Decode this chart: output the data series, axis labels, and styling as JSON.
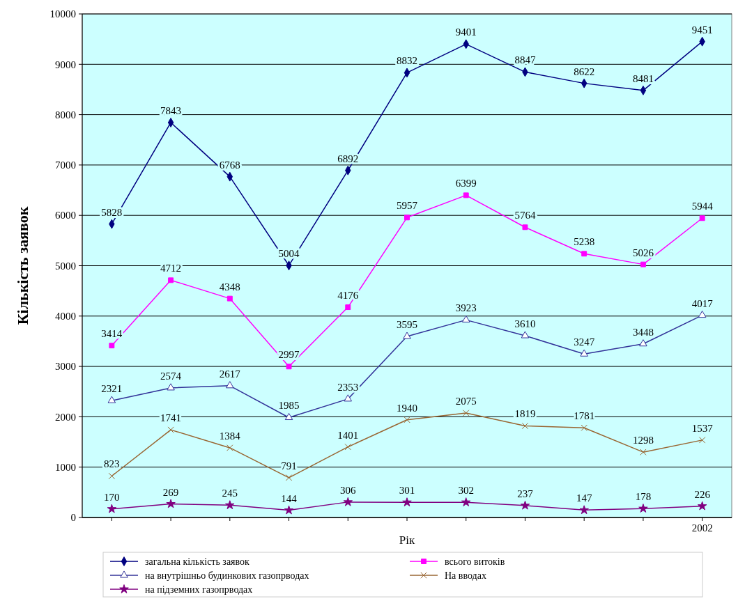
{
  "chart_data": {
    "type": "line",
    "xlabel": "Рік",
    "ylabel": "Кількість заявок",
    "categories": [
      null,
      null,
      null,
      null,
      null,
      null,
      null,
      null,
      null,
      null,
      "2002"
    ],
    "ylim": [
      0,
      10000
    ],
    "yticks": [
      0,
      1000,
      2000,
      3000,
      4000,
      5000,
      6000,
      7000,
      8000,
      9000,
      10000
    ],
    "grid": "y",
    "legend": "bottom",
    "data_labels": true,
    "series": [
      {
        "name": "загальна кількість заявок",
        "color": "#000080",
        "marker": "diamond",
        "values": [
          5828,
          7843,
          6768,
          5004,
          6892,
          8832,
          9401,
          8847,
          8622,
          8481,
          9451
        ]
      },
      {
        "name": "всього витоків",
        "color": "#ff00ff",
        "marker": "square",
        "values": [
          3414,
          4712,
          4348,
          2997,
          4176,
          5957,
          6399,
          5764,
          5238,
          5026,
          5944
        ]
      },
      {
        "name": "на внутрішньо будинкових газопрводах",
        "color": "#333399",
        "marker": "triangle",
        "values": [
          2321,
          2574,
          2617,
          1985,
          2353,
          3595,
          3923,
          3610,
          3247,
          3448,
          4017
        ]
      },
      {
        "name": "На вводах",
        "color": "#996633",
        "marker": "cross",
        "values": [
          823,
          1741,
          1384,
          791,
          1401,
          1940,
          2075,
          1819,
          1781,
          1298,
          1537
        ]
      },
      {
        "name": "на підземних газопрводах",
        "color": "#800080",
        "marker": "star",
        "values": [
          170,
          269,
          245,
          144,
          306,
          301,
          302,
          237,
          147,
          178,
          226
        ]
      }
    ]
  }
}
